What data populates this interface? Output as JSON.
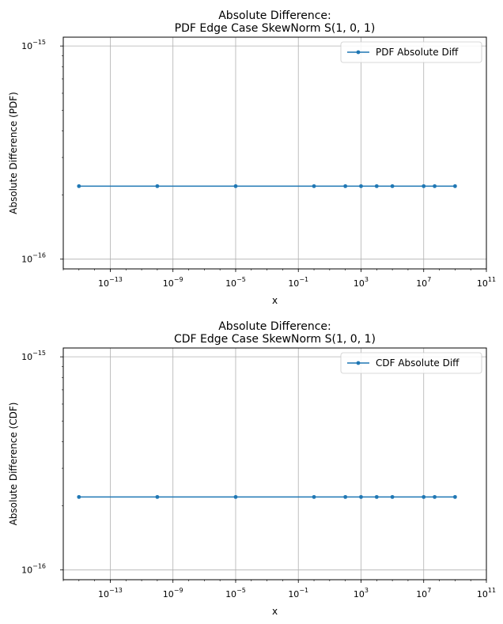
{
  "chart_data": [
    {
      "type": "line",
      "title": "Absolute Difference:",
      "subtitle": "PDF Edge Case SkewNorm S(1, 0, 1)",
      "xlabel": "x",
      "ylabel": "Absolute Difference (PDF)",
      "xscale": "log",
      "yscale": "log",
      "xlim": [
        1e-16,
        100000000000.0
      ],
      "ylim": [
        9e-17,
        1.1e-15
      ],
      "x_ticks": [
        "10^-13",
        "10^-9",
        "10^-5",
        "10^-1",
        "10^3",
        "10^7",
        "10^11"
      ],
      "y_ticks": [
        "10^-16",
        "10^-15"
      ],
      "grid": true,
      "legend_position": "top-right",
      "series": [
        {
          "name": "PDF Absolute Diff",
          "color": "#1f77b4",
          "x": [
            1e-15,
            1e-10,
            1e-05,
            1,
            100,
            1000,
            10000,
            100000,
            10000000,
            50000000,
            1000000000
          ],
          "y": [
            2.2e-16,
            2.2e-16,
            2.2e-16,
            2.2e-16,
            2.2e-16,
            2.2e-16,
            2.2e-16,
            2.2e-16,
            2.2e-16,
            2.2e-16,
            2.2e-16
          ]
        }
      ]
    },
    {
      "type": "line",
      "title": "Absolute Difference:",
      "subtitle": "CDF Edge Case SkewNorm S(1, 0, 1)",
      "xlabel": "x",
      "ylabel": "Absolute Difference (CDF)",
      "xscale": "log",
      "yscale": "log",
      "xlim": [
        1e-16,
        100000000000.0
      ],
      "ylim": [
        9e-17,
        1.1e-15
      ],
      "x_ticks": [
        "10^-13",
        "10^-9",
        "10^-5",
        "10^-1",
        "10^3",
        "10^7",
        "10^11"
      ],
      "y_ticks": [
        "10^-16",
        "10^-15"
      ],
      "grid": true,
      "legend_position": "top-right",
      "series": [
        {
          "name": "CDF Absolute Diff",
          "color": "#1f77b4",
          "x": [
            1e-15,
            1e-10,
            1e-05,
            1,
            100,
            1000,
            10000,
            100000,
            10000000,
            50000000,
            1000000000
          ],
          "y": [
            2.2e-16,
            2.2e-16,
            2.2e-16,
            2.2e-16,
            2.2e-16,
            2.2e-16,
            2.2e-16,
            2.2e-16,
            2.2e-16,
            2.2e-16,
            2.2e-16
          ]
        }
      ]
    }
  ]
}
